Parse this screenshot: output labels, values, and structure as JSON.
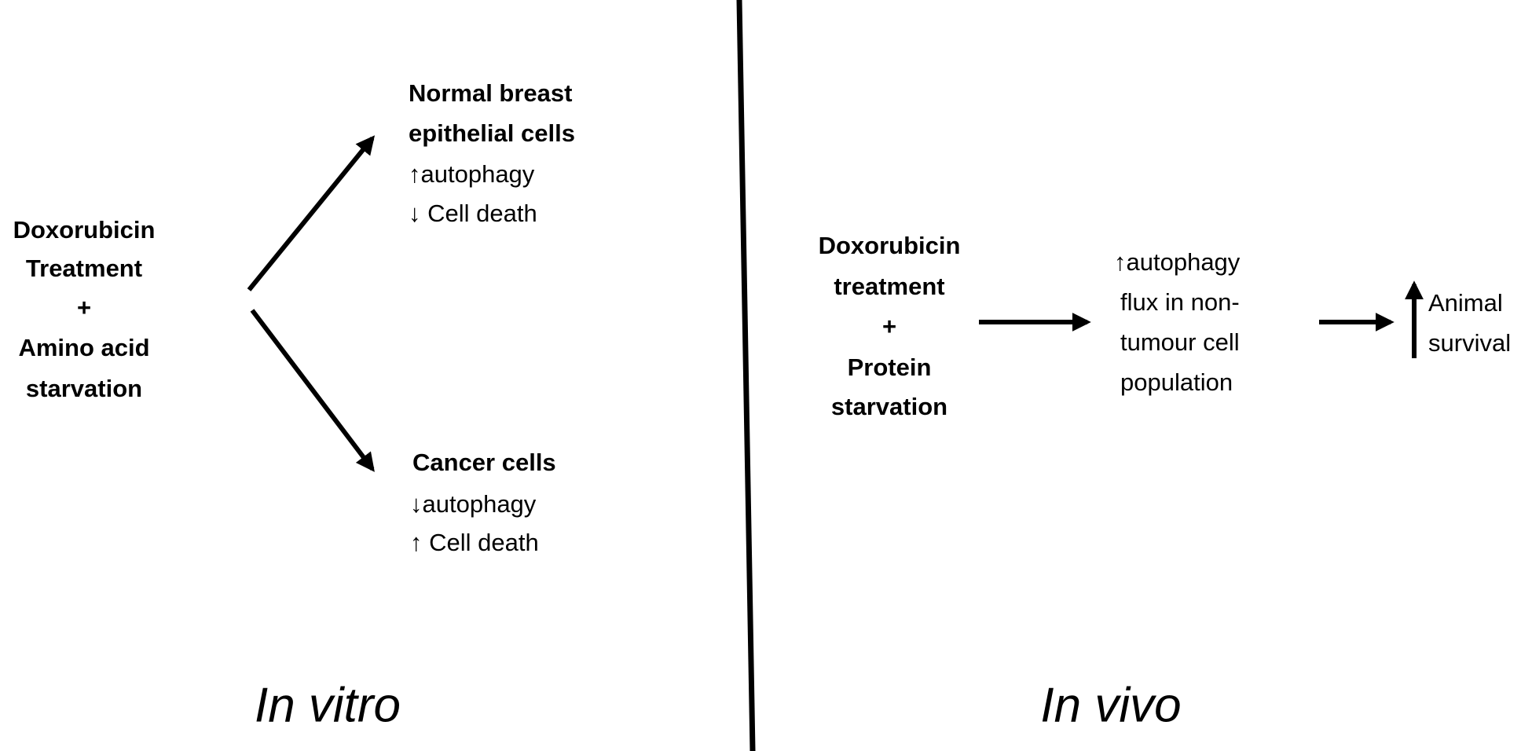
{
  "left": {
    "input": [
      "Doxorubicin",
      "Treatment",
      "+",
      "Amino acid",
      "starvation"
    ],
    "outcomes": [
      {
        "title": [
          "Normal breast",
          "epithelial cells"
        ],
        "effects": [
          "↑autophagy",
          "↓ Cell death"
        ]
      },
      {
        "title": [
          "Cancer cells"
        ],
        "effects": [
          "↓autophagy",
          "↑ Cell death"
        ]
      }
    ],
    "label": "In vitro"
  },
  "right": {
    "input": [
      "Doxorubicin",
      "treatment",
      "+",
      "Protein",
      "starvation"
    ],
    "effect": [
      "↑autophagy",
      "flux in non-",
      "tumour cell",
      "population"
    ],
    "result": [
      "Animal",
      "survival"
    ],
    "label": "In vivo"
  }
}
